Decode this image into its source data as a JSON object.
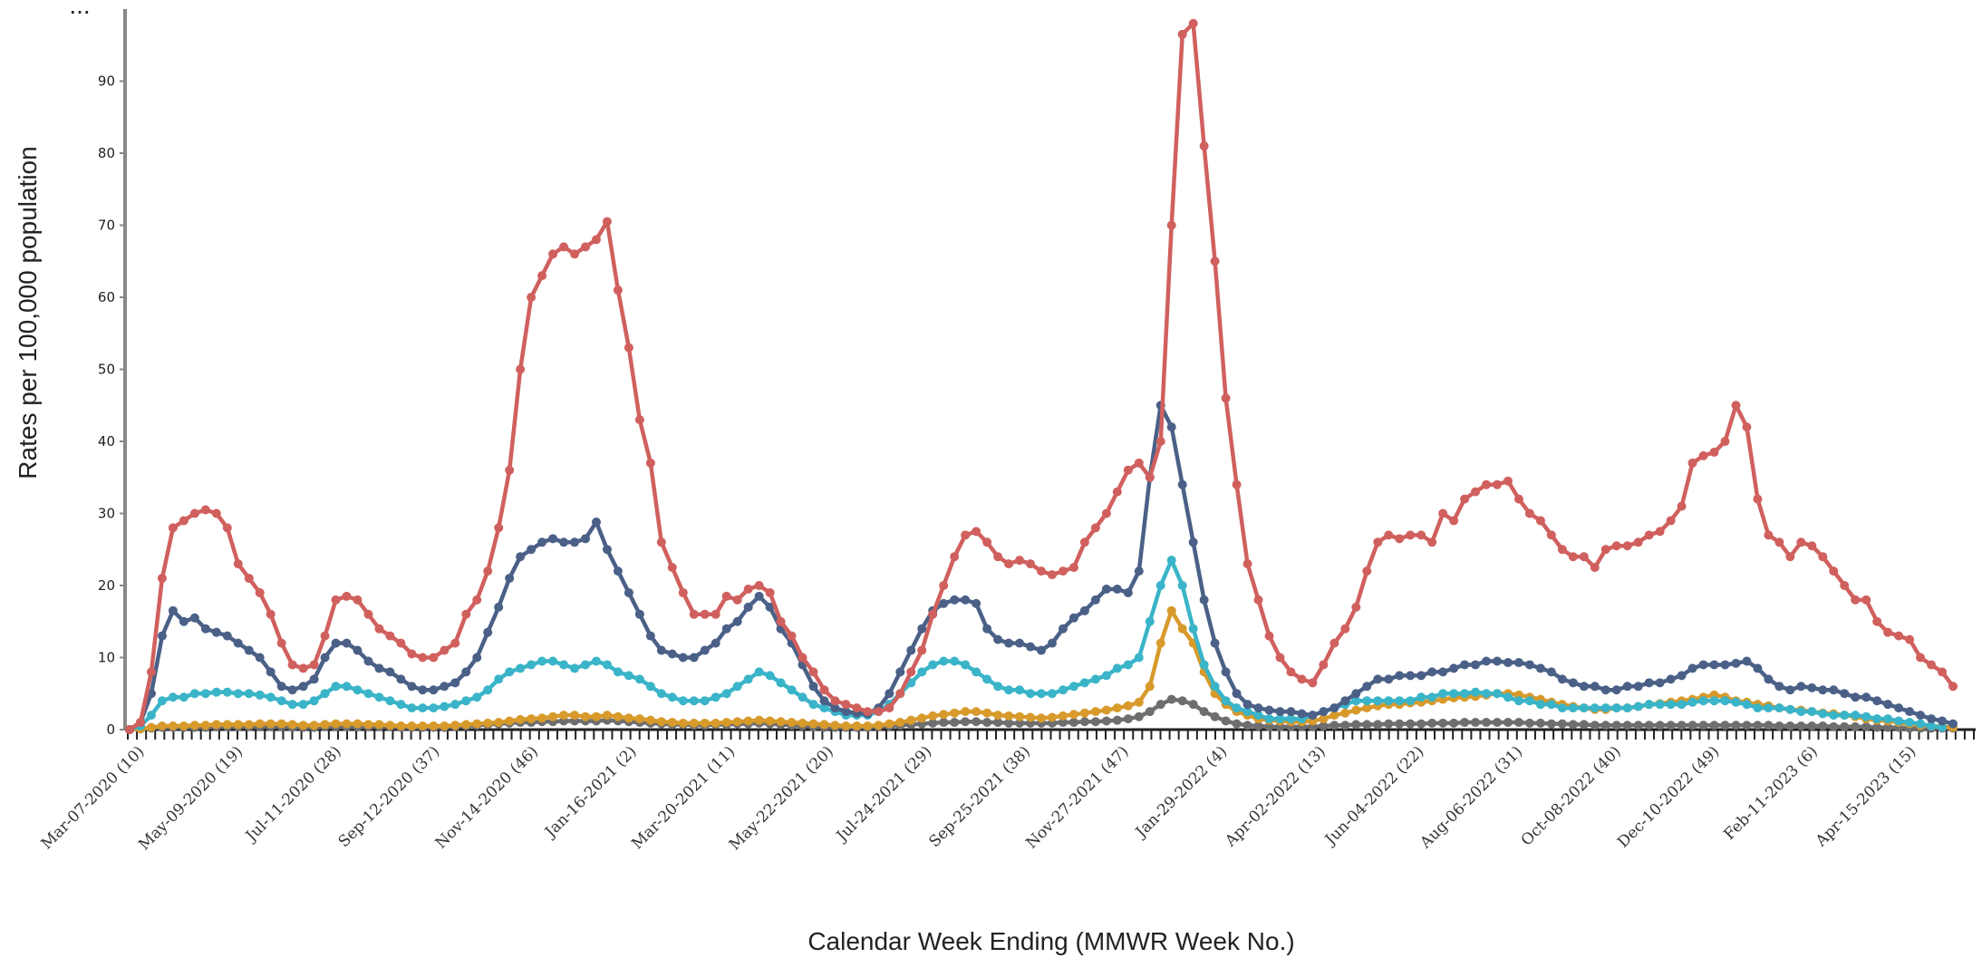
{
  "chart_data": {
    "type": "line",
    "title": "",
    "xlabel": "Calendar Week Ending (MMWR Week No.)",
    "ylabel": "Rates per 100,000 population",
    "ylim": [
      0,
      100
    ],
    "yticks": [
      0,
      10,
      20,
      30,
      40,
      50,
      60,
      70,
      80,
      90
    ],
    "week_start": "2020-03-07",
    "x_tick_labels": [
      "Mar-07-2020 (10)",
      "May-09-2020 (19)",
      "Jul-11-2020 (28)",
      "Sep-12-2020 (37)",
      "Nov-14-2020 (46)",
      "Jan-16-2021 (2)",
      "Mar-20-2021 (11)",
      "May-22-2021 (20)",
      "Jul-24-2021 (29)",
      "Sep-25-2021 (38)",
      "Nov-27-2021 (47)",
      "Jan-29-2022 (4)",
      "Apr-02-2022 (13)",
      "Jun-04-2022 (22)",
      "Aug-06-2022 (31)",
      "Oct-08-2022 (40)",
      "Dec-10-2022 (49)",
      "Feb-11-2023 (6)",
      "Apr-15-2023 (15)"
    ],
    "grid": false,
    "series": [
      {
        "name": "",
        "color": "#d0605e",
        "values": [
          0,
          1,
          8,
          21,
          28,
          29,
          30,
          30.5,
          30,
          28,
          23,
          21,
          19,
          16,
          12,
          9,
          8.5,
          9,
          13,
          18,
          18.5,
          18,
          16,
          14,
          13,
          12,
          10.5,
          10,
          10,
          11,
          12,
          16,
          18,
          22,
          28,
          36,
          50,
          60,
          63,
          66,
          67,
          66,
          67,
          68,
          70.5,
          61,
          53,
          43,
          37,
          26,
          22.5,
          19,
          16,
          16,
          16,
          18.5,
          18,
          19.5,
          20,
          19,
          15,
          13,
          10,
          8,
          5.5,
          4,
          3.5,
          3,
          2.5,
          2.5,
          3,
          5,
          8,
          11,
          16,
          20,
          24,
          27,
          27.5,
          26,
          24,
          23,
          23.5,
          23,
          22,
          21.5,
          22,
          22.5,
          26,
          28,
          30,
          33,
          36,
          37,
          35,
          40,
          70,
          96.5,
          98,
          81,
          65,
          46,
          34,
          23,
          18,
          13,
          10,
          8,
          7,
          6.5,
          9,
          12,
          14,
          17,
          22,
          26,
          27,
          26.5,
          27,
          27,
          26,
          30,
          29,
          32,
          33,
          34,
          34,
          34.5,
          32,
          30,
          29,
          27,
          25,
          24,
          24,
          22.5,
          25,
          25.5,
          25.5,
          26,
          27,
          27.5,
          29,
          31,
          37,
          38,
          38.5,
          40,
          45,
          42,
          32,
          27,
          26,
          24,
          26,
          25.5,
          24,
          22,
          20,
          18,
          18,
          15,
          13.5,
          13,
          12.5,
          10,
          9,
          8,
          6
        ]
      },
      {
        "name": "",
        "color": "#4a6087",
        "values": [
          0,
          1,
          5,
          13,
          16.5,
          15,
          15.5,
          14,
          13.5,
          13,
          12,
          11,
          10,
          8,
          6,
          5.5,
          6,
          7,
          10,
          12,
          12,
          11,
          9.5,
          8.5,
          8,
          7,
          6,
          5.5,
          5.5,
          6,
          6.5,
          8,
          10,
          13.5,
          17,
          21,
          24,
          25,
          26,
          26.5,
          26,
          26,
          26.5,
          28.8,
          25,
          22,
          19,
          16,
          13,
          11,
          10.5,
          10,
          10,
          11,
          12,
          14,
          15,
          17,
          18.5,
          17,
          14,
          12,
          9,
          6,
          4,
          3,
          2.5,
          2.3,
          2.2,
          3,
          5,
          8,
          11,
          14,
          16.5,
          17.5,
          18,
          18,
          17.5,
          14,
          12.5,
          12,
          12,
          11.5,
          11,
          12,
          14,
          15.5,
          16.5,
          18,
          19.5,
          19.5,
          19,
          22,
          35,
          45,
          42,
          34,
          26,
          18,
          12,
          8,
          5,
          3.5,
          3,
          2.7,
          2.5,
          2.5,
          2.2,
          2,
          2.5,
          3,
          4,
          5,
          6,
          7,
          7,
          7.5,
          7.5,
          7.5,
          8,
          8,
          8.5,
          9,
          9,
          9.5,
          9.5,
          9.3,
          9.3,
          9,
          8.5,
          8,
          7,
          6.5,
          6,
          6,
          5.5,
          5.5,
          6,
          6,
          6.5,
          6.5,
          7,
          7.5,
          8.5,
          9,
          9,
          9,
          9.2,
          9.5,
          8.5,
          7,
          6,
          5.5,
          6,
          5.8,
          5.5,
          5.5,
          5,
          4.5,
          4.5,
          4,
          3.5,
          3,
          2.5,
          2,
          1.5,
          1.2,
          0.8
        ]
      },
      {
        "name": "",
        "color": "#3ab4c8",
        "values": [
          0,
          0.5,
          2,
          4,
          4.5,
          4.5,
          5,
          5,
          5.2,
          5.2,
          5,
          5,
          4.8,
          4.5,
          4,
          3.5,
          3.5,
          4,
          5,
          6,
          6,
          5.5,
          5,
          4.5,
          4,
          3.5,
          3,
          3,
          3,
          3.2,
          3.5,
          4,
          4.5,
          5.5,
          7,
          8,
          8.5,
          9,
          9.5,
          9.5,
          9,
          8.5,
          9,
          9.5,
          9,
          8,
          7.5,
          7,
          6,
          5,
          4.5,
          4,
          4,
          4,
          4.5,
          5,
          6,
          7,
          8,
          7.5,
          6.5,
          5.5,
          4.5,
          3.5,
          3,
          2.5,
          2,
          2,
          2,
          2.5,
          3.5,
          5,
          6.5,
          8,
          9,
          9.5,
          9.5,
          9,
          8,
          7,
          6,
          5.5,
          5.5,
          5,
          5,
          5,
          5.5,
          6,
          6.5,
          7,
          7.5,
          8.5,
          9,
          10,
          15,
          20,
          23.5,
          20,
          14,
          9,
          6,
          4,
          3,
          2.5,
          2,
          1.5,
          1.5,
          1.5,
          1.5,
          2,
          2.5,
          3,
          3.5,
          4,
          4,
          4,
          4,
          4,
          4,
          4.5,
          4.5,
          5,
          5,
          5,
          5.2,
          5,
          5,
          4.5,
          4,
          4,
          3.5,
          3.5,
          3,
          3,
          3,
          3,
          3,
          3,
          3,
          3.2,
          3.5,
          3.5,
          3.5,
          3.5,
          3.8,
          4,
          4,
          4,
          3.8,
          3.5,
          3,
          3,
          3,
          2.8,
          2.5,
          2.5,
          2.2,
          2,
          2,
          2,
          1.8,
          1.5,
          1.5,
          1.2,
          1,
          0.8,
          0.5,
          0.3
        ]
      },
      {
        "name": "",
        "color": "#d79a2b",
        "values": [
          0,
          0.1,
          0.3,
          0.5,
          0.5,
          0.5,
          0.6,
          0.6,
          0.7,
          0.7,
          0.7,
          0.7,
          0.8,
          0.8,
          0.8,
          0.7,
          0.6,
          0.6,
          0.7,
          0.8,
          0.8,
          0.8,
          0.7,
          0.7,
          0.6,
          0.5,
          0.5,
          0.5,
          0.5,
          0.5,
          0.6,
          0.7,
          0.8,
          0.9,
          1,
          1.2,
          1.4,
          1.5,
          1.6,
          1.8,
          2,
          2,
          1.8,
          1.8,
          2,
          1.8,
          1.6,
          1.5,
          1.3,
          1.1,
          1,
          0.9,
          0.9,
          0.9,
          0.9,
          1,
          1.1,
          1.2,
          1.3,
          1.2,
          1.1,
          1,
          0.9,
          0.8,
          0.7,
          0.6,
          0.5,
          0.5,
          0.5,
          0.6,
          0.8,
          1,
          1.3,
          1.6,
          1.9,
          2.1,
          2.3,
          2.5,
          2.5,
          2.3,
          2,
          1.9,
          1.8,
          1.7,
          1.6,
          1.7,
          1.9,
          2.1,
          2.3,
          2.5,
          2.7,
          3,
          3.3,
          3.8,
          6,
          12,
          16.5,
          14,
          12,
          8,
          5,
          3.5,
          2.5,
          2,
          1.5,
          1.3,
          1.2,
          1.1,
          1.1,
          1.2,
          1.5,
          2,
          2.3,
          2.7,
          3,
          3.3,
          3.5,
          3.5,
          3.7,
          3.8,
          4,
          4.2,
          4.4,
          4.5,
          4.6,
          4.8,
          5,
          5,
          4.8,
          4.5,
          4.2,
          3.8,
          3.5,
          3.2,
          3,
          2.8,
          2.8,
          3,
          3,
          3.2,
          3.5,
          3.6,
          3.8,
          4,
          4.2,
          4.5,
          4.8,
          4.5,
          4,
          3.8,
          3.5,
          3.3,
          3,
          2.8,
          2.7,
          2.5,
          2.3,
          2.2,
          2,
          1.8,
          1.5,
          1.3,
          1.2,
          1,
          0.8,
          0.6,
          0.5,
          0.4,
          0.3
        ]
      },
      {
        "name": "",
        "color": "#6e6e6e",
        "values": [
          0,
          0.1,
          0.2,
          0.3,
          0.3,
          0.3,
          0.3,
          0.3,
          0.4,
          0.4,
          0.4,
          0.4,
          0.4,
          0.4,
          0.4,
          0.3,
          0.3,
          0.3,
          0.4,
          0.4,
          0.4,
          0.4,
          0.4,
          0.4,
          0.4,
          0.3,
          0.3,
          0.3,
          0.3,
          0.3,
          0.4,
          0.5,
          0.6,
          0.7,
          0.8,
          0.9,
          1,
          1,
          1.1,
          1.1,
          1.2,
          1.2,
          1.2,
          1.2,
          1.3,
          1.2,
          1.1,
          1,
          0.9,
          0.8,
          0.7,
          0.7,
          0.6,
          0.6,
          0.7,
          0.7,
          0.8,
          0.8,
          0.9,
          0.8,
          0.7,
          0.6,
          0.5,
          0.4,
          0.3,
          0.3,
          0.3,
          0.3,
          0.3,
          0.4,
          0.5,
          0.6,
          0.7,
          0.8,
          0.9,
          1,
          1,
          1.1,
          1.1,
          1,
          1,
          0.9,
          0.9,
          0.9,
          0.9,
          0.9,
          1,
          1,
          1.1,
          1.1,
          1.2,
          1.3,
          1.5,
          1.8,
          2.5,
          3.5,
          4.2,
          4,
          3.5,
          2.5,
          1.8,
          1.2,
          0.8,
          0.6,
          0.5,
          0.4,
          0.4,
          0.4,
          0.4,
          0.4,
          0.5,
          0.6,
          0.6,
          0.7,
          0.7,
          0.7,
          0.8,
          0.8,
          0.8,
          0.8,
          0.9,
          0.9,
          0.9,
          1,
          1,
          1,
          1,
          1,
          1,
          0.9,
          0.9,
          0.8,
          0.8,
          0.7,
          0.7,
          0.6,
          0.6,
          0.6,
          0.6,
          0.6,
          0.6,
          0.6,
          0.6,
          0.6,
          0.6,
          0.6,
          0.6,
          0.6,
          0.6,
          0.6,
          0.6,
          0.6,
          0.5,
          0.5,
          0.5,
          0.5,
          0.5,
          0.4,
          0.4,
          0.4,
          0.4,
          0.3,
          0.3,
          0.3,
          0.2,
          0.2,
          0.2,
          0.2,
          0.2
        ]
      }
    ]
  }
}
